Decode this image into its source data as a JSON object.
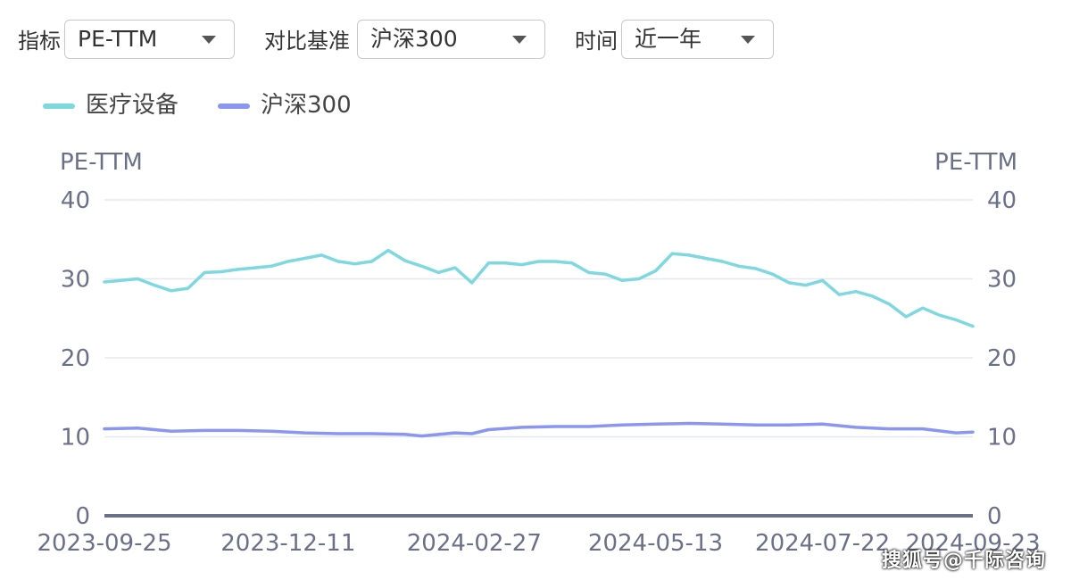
{
  "controls": {
    "metric": {
      "label": "指标",
      "value": "PE-TTM"
    },
    "benchmark": {
      "label": "对比基准",
      "value": "沪深300"
    },
    "period": {
      "label": "时间",
      "value": "近一年"
    }
  },
  "colors": {
    "series1": "#7dd8df",
    "series2": "#8b96f2",
    "axis": "#6b7089",
    "grid": "#e6e8f0",
    "text": "#6b7089"
  },
  "watermark": "搜狐号@千际咨询",
  "chart_data": {
    "type": "line",
    "y_axis_title_left": "PE-TTM",
    "y_axis_title_right": "PE-TTM",
    "ylim": [
      0,
      40
    ],
    "yticks": [
      0,
      10,
      20,
      30,
      40
    ],
    "xlim": [
      "2023-09-25",
      "2024-09-23"
    ],
    "xticks": [
      "2023-09-25",
      "2023-12-11",
      "2024-02-27",
      "2024-05-13",
      "2024-07-22",
      "2024-09-23"
    ],
    "grid": true,
    "legend_position": "top-left",
    "series": [
      {
        "name": "医疗设备",
        "color": "#7dd8df",
        "points": [
          [
            "2023-09-25",
            29.6
          ],
          [
            "2023-10-02",
            29.8
          ],
          [
            "2023-10-09",
            30.0
          ],
          [
            "2023-10-16",
            29.2
          ],
          [
            "2023-10-23",
            28.5
          ],
          [
            "2023-10-30",
            28.8
          ],
          [
            "2023-11-06",
            30.8
          ],
          [
            "2023-11-13",
            30.9
          ],
          [
            "2023-11-20",
            31.2
          ],
          [
            "2023-11-27",
            31.4
          ],
          [
            "2023-12-04",
            31.6
          ],
          [
            "2023-12-11",
            32.2
          ],
          [
            "2023-12-18",
            32.6
          ],
          [
            "2023-12-25",
            33.0
          ],
          [
            "2024-01-01",
            32.2
          ],
          [
            "2024-01-08",
            31.9
          ],
          [
            "2024-01-15",
            32.2
          ],
          [
            "2024-01-22",
            33.6
          ],
          [
            "2024-01-29",
            32.3
          ],
          [
            "2024-02-05",
            31.6
          ],
          [
            "2024-02-12",
            30.8
          ],
          [
            "2024-02-19",
            31.4
          ],
          [
            "2024-02-26",
            29.5
          ],
          [
            "2024-03-04",
            32.0
          ],
          [
            "2024-03-11",
            32.0
          ],
          [
            "2024-03-18",
            31.8
          ],
          [
            "2024-03-25",
            32.2
          ],
          [
            "2024-04-01",
            32.2
          ],
          [
            "2024-04-08",
            32.0
          ],
          [
            "2024-04-15",
            30.8
          ],
          [
            "2024-04-22",
            30.6
          ],
          [
            "2024-04-29",
            29.8
          ],
          [
            "2024-05-06",
            30.0
          ],
          [
            "2024-05-13",
            31.0
          ],
          [
            "2024-05-20",
            33.2
          ],
          [
            "2024-05-27",
            33.0
          ],
          [
            "2024-06-03",
            32.6
          ],
          [
            "2024-06-10",
            32.2
          ],
          [
            "2024-06-17",
            31.6
          ],
          [
            "2024-06-24",
            31.3
          ],
          [
            "2024-07-01",
            30.6
          ],
          [
            "2024-07-08",
            29.5
          ],
          [
            "2024-07-15",
            29.2
          ],
          [
            "2024-07-22",
            29.8
          ],
          [
            "2024-07-29",
            28.0
          ],
          [
            "2024-08-05",
            28.4
          ],
          [
            "2024-08-12",
            27.8
          ],
          [
            "2024-08-19",
            26.8
          ],
          [
            "2024-08-26",
            25.2
          ],
          [
            "2024-09-02",
            26.3
          ],
          [
            "2024-09-09",
            25.4
          ],
          [
            "2024-09-16",
            24.8
          ],
          [
            "2024-09-23",
            24.0
          ]
        ]
      },
      {
        "name": "沪深300",
        "color": "#8b96f2",
        "points": [
          [
            "2023-09-25",
            11.0
          ],
          [
            "2023-10-09",
            11.1
          ],
          [
            "2023-10-23",
            10.7
          ],
          [
            "2023-11-06",
            10.8
          ],
          [
            "2023-11-20",
            10.8
          ],
          [
            "2023-12-04",
            10.7
          ],
          [
            "2023-12-18",
            10.5
          ],
          [
            "2024-01-01",
            10.4
          ],
          [
            "2024-01-15",
            10.4
          ],
          [
            "2024-01-29",
            10.3
          ],
          [
            "2024-02-05",
            10.1
          ],
          [
            "2024-02-19",
            10.5
          ],
          [
            "2024-02-26",
            10.4
          ],
          [
            "2024-03-04",
            10.9
          ],
          [
            "2024-03-18",
            11.2
          ],
          [
            "2024-04-01",
            11.3
          ],
          [
            "2024-04-15",
            11.3
          ],
          [
            "2024-04-29",
            11.5
          ],
          [
            "2024-05-13",
            11.6
          ],
          [
            "2024-05-27",
            11.7
          ],
          [
            "2024-06-10",
            11.6
          ],
          [
            "2024-06-24",
            11.5
          ],
          [
            "2024-07-08",
            11.5
          ],
          [
            "2024-07-22",
            11.6
          ],
          [
            "2024-08-05",
            11.2
          ],
          [
            "2024-08-19",
            11.0
          ],
          [
            "2024-09-02",
            11.0
          ],
          [
            "2024-09-16",
            10.5
          ],
          [
            "2024-09-23",
            10.6
          ]
        ]
      }
    ]
  }
}
